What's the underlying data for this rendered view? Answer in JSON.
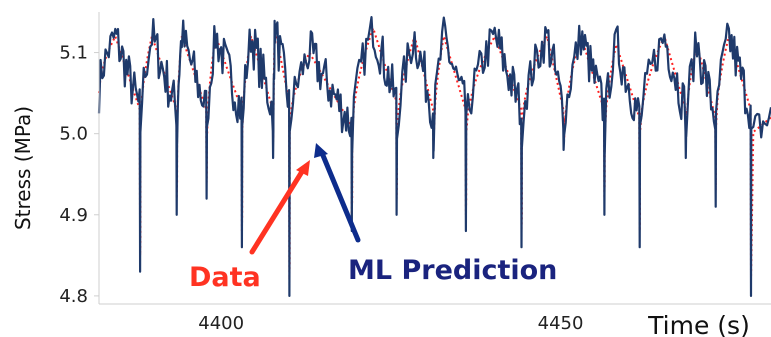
{
  "chart_data": {
    "type": "line",
    "title": "",
    "xlabel": "Time (s)",
    "ylabel": "Stress (MPa)",
    "xlim": [
      4382,
      4481
    ],
    "ylim": [
      4.79,
      5.15
    ],
    "x_ticks": [
      4400,
      4450
    ],
    "x_tick_labels": [
      "4400",
      "4450"
    ],
    "y_ticks": [
      4.8,
      4.9,
      5.0,
      5.1
    ],
    "y_tick_labels": [
      "4.8",
      "4.9",
      "5.0",
      "5.1"
    ],
    "grid": false,
    "legend": "none",
    "cycle_drops": [
      {
        "peak_time": 4384.4,
        "drop_time": 4388.0,
        "peak_stress": 5.12,
        "min_stress": 4.83
      },
      {
        "peak_time": 4389.8,
        "drop_time": 4393.4,
        "peak_stress": 5.12,
        "min_stress": 4.9
      },
      {
        "peak_time": 4394.2,
        "drop_time": 4397.8,
        "peak_stress": 5.12,
        "min_stress": 4.92
      },
      {
        "peak_time": 4399.2,
        "drop_time": 4403.0,
        "peak_stress": 5.12,
        "min_stress": 4.86
      },
      {
        "peak_time": 4404.4,
        "drop_time": 4407.6,
        "peak_stress": 5.12,
        "min_stress": 4.97
      },
      {
        "peak_time": 4407.9,
        "drop_time": 4410.0,
        "peak_stress": 5.13,
        "min_stress": 4.8
      },
      {
        "peak_time": 4413.0,
        "drop_time": 4419.2,
        "peak_stress": 5.1,
        "min_stress": 4.88
      },
      {
        "peak_time": 4422.4,
        "drop_time": 4425.8,
        "peak_stress": 5.13,
        "min_stress": 4.9
      },
      {
        "peak_time": 4428.5,
        "drop_time": 4431.2,
        "peak_stress": 5.12,
        "min_stress": 4.97
      },
      {
        "peak_time": 4432.8,
        "drop_time": 4436.0,
        "peak_stress": 5.12,
        "min_stress": 4.88
      },
      {
        "peak_time": 4440.3,
        "drop_time": 4444.2,
        "peak_stress": 5.12,
        "min_stress": 4.86
      },
      {
        "peak_time": 4448.0,
        "drop_time": 4450.4,
        "peak_stress": 5.12,
        "min_stress": 4.98
      },
      {
        "peak_time": 4453.0,
        "drop_time": 4456.4,
        "peak_stress": 5.12,
        "min_stress": 4.9
      },
      {
        "peak_time": 4458.2,
        "drop_time": 4461.6,
        "peak_stress": 5.11,
        "min_stress": 4.86
      },
      {
        "peak_time": 4465.3,
        "drop_time": 4468.4,
        "peak_stress": 5.12,
        "min_stress": 4.97
      },
      {
        "peak_time": 4470.1,
        "drop_time": 4472.8,
        "peak_stress": 5.11,
        "min_stress": 4.91
      },
      {
        "peak_time": 4474.8,
        "drop_time": 4478.0,
        "peak_stress": 5.12,
        "min_stress": 4.8
      }
    ],
    "series": [
      {
        "role": "measured",
        "style": "solid",
        "color": "#1f3a6b"
      },
      {
        "role": "predicted",
        "style": "dotted",
        "color": "#ff2020"
      }
    ],
    "annotations": [
      {
        "text": "Data",
        "color": "#ff3322",
        "target_time": 4410.6,
        "target_stress": 4.96
      },
      {
        "text": "ML Prediction",
        "color": "#1a237e",
        "target_time": 4412.6,
        "target_stress": 4.98
      }
    ]
  }
}
